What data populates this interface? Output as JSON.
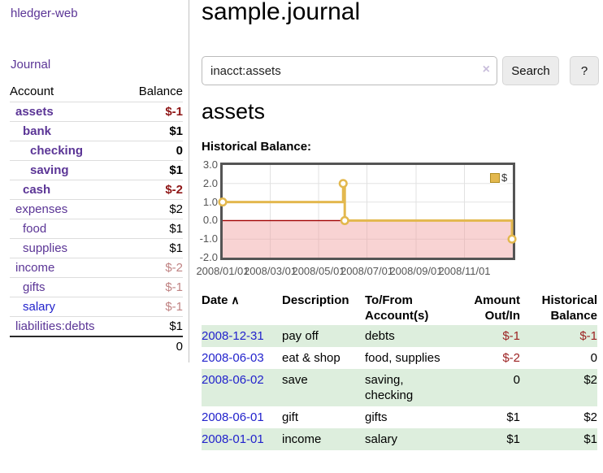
{
  "app": {
    "brand": "hledger-web",
    "nav": {
      "journal": "Journal"
    }
  },
  "icons": {
    "sort_asc": "∧",
    "clear_search": "×",
    "legend_swatch": "gold-square"
  },
  "sidebar": {
    "columns": {
      "account": "Account",
      "balance": "Balance"
    },
    "accounts": [
      {
        "name": "assets",
        "balance": "$-1",
        "depth": 1,
        "bold": true,
        "balance_tone": "neg-strong"
      },
      {
        "name": "bank",
        "balance": "$1",
        "depth": 2,
        "bold": true,
        "balance_tone": "pos"
      },
      {
        "name": "checking",
        "balance": "0",
        "depth": 3,
        "bold": true,
        "balance_tone": "pos"
      },
      {
        "name": "saving",
        "balance": "$1",
        "depth": 3,
        "bold": true,
        "balance_tone": "pos"
      },
      {
        "name": "cash",
        "balance": "$-2",
        "depth": 2,
        "bold": true,
        "balance_tone": "neg-strong"
      },
      {
        "name": "expenses",
        "balance": "$2",
        "depth": 1,
        "bold": false,
        "balance_tone": "pos"
      },
      {
        "name": "food",
        "balance": "$1",
        "depth": 2,
        "bold": false,
        "balance_tone": "pos"
      },
      {
        "name": "supplies",
        "balance": "$1",
        "depth": 2,
        "bold": false,
        "balance_tone": "pos"
      },
      {
        "name": "income",
        "balance": "$-2",
        "depth": 1,
        "bold": false,
        "balance_tone": "neg-soft"
      },
      {
        "name": "gifts",
        "balance": "$-1",
        "depth": 2,
        "bold": false,
        "balance_tone": "neg-soft"
      },
      {
        "name": "salary",
        "balance": "$-1",
        "depth": 2,
        "bold": false,
        "balance_tone": "neg-soft",
        "link_tone": "blue"
      },
      {
        "name": "liabilities:debts",
        "balance": "$1",
        "depth": 1,
        "bold": false,
        "balance_tone": "pos"
      }
    ],
    "total": "0"
  },
  "main": {
    "title": "sample.journal",
    "search": {
      "value": "inacct:assets",
      "button_label": "Search",
      "help_label": "?"
    },
    "account_heading": "assets",
    "chart_heading": "Historical Balance:"
  },
  "chart_data": {
    "type": "line",
    "style": "step-after",
    "title": "Historical Balance",
    "series": [
      {
        "name": "$",
        "color": "#e3b84e",
        "points": [
          {
            "date": "2008-01-01",
            "value": 1
          },
          {
            "date": "2008-06-01",
            "value": 2
          },
          {
            "date": "2008-06-03",
            "value": 0
          },
          {
            "date": "2008-12-31",
            "value": -1
          }
        ]
      }
    ],
    "x_ticks": [
      {
        "date": "2008-01-01",
        "label": "2008/01/01"
      },
      {
        "date": "2008-03-01",
        "label": "2008/03/01"
      },
      {
        "date": "2008-05-01",
        "label": "2008/05/01"
      },
      {
        "date": "2008-07-01",
        "label": "2008/07/01"
      },
      {
        "date": "2008-09-01",
        "label": "2008/09/01"
      },
      {
        "date": "2008-11-01",
        "label": "2008/11/01"
      }
    ],
    "y_ticks": [
      {
        "value": 3,
        "label": "3.0"
      },
      {
        "value": 2,
        "label": "2.0"
      },
      {
        "value": 1,
        "label": "1.0"
      },
      {
        "value": 0,
        "label": "0.0"
      },
      {
        "value": -1,
        "label": "-1.0"
      },
      {
        "value": -2,
        "label": "-2.0"
      }
    ],
    "xlim": [
      "2008-01-01",
      "2009-01-01"
    ],
    "ylim": [
      -2,
      3
    ],
    "grid": true,
    "negative_region_fill": "#f5dada",
    "zero_line_color": "#a00000",
    "legend": {
      "label": "$",
      "position": "top-right"
    }
  },
  "register": {
    "columns": [
      {
        "lines": [
          "Date"
        ],
        "sorted": "asc",
        "align": "left"
      },
      {
        "lines": [
          "Description"
        ],
        "align": "left"
      },
      {
        "lines": [
          "To/From",
          "Account(s)"
        ],
        "align": "left"
      },
      {
        "lines": [
          "Amount",
          "Out/In"
        ],
        "align": "right"
      },
      {
        "lines": [
          "Historical",
          "Balance"
        ],
        "align": "right"
      }
    ],
    "rows": [
      {
        "date": "2008-12-31",
        "description": "pay off",
        "accounts": "debts",
        "amount": "$-1",
        "balance": "$-1"
      },
      {
        "date": "2008-06-03",
        "description": "eat & shop",
        "accounts": "food, supplies",
        "amount": "$-2",
        "balance": "0"
      },
      {
        "date": "2008-06-02",
        "description": "save",
        "accounts": "saving, checking",
        "amount": "0",
        "balance": "$2"
      },
      {
        "date": "2008-06-01",
        "description": "gift",
        "accounts": "gifts",
        "amount": "$1",
        "balance": "$2"
      },
      {
        "date": "2008-01-01",
        "description": "income",
        "accounts": "salary",
        "amount": "$1",
        "balance": "$1"
      }
    ]
  }
}
